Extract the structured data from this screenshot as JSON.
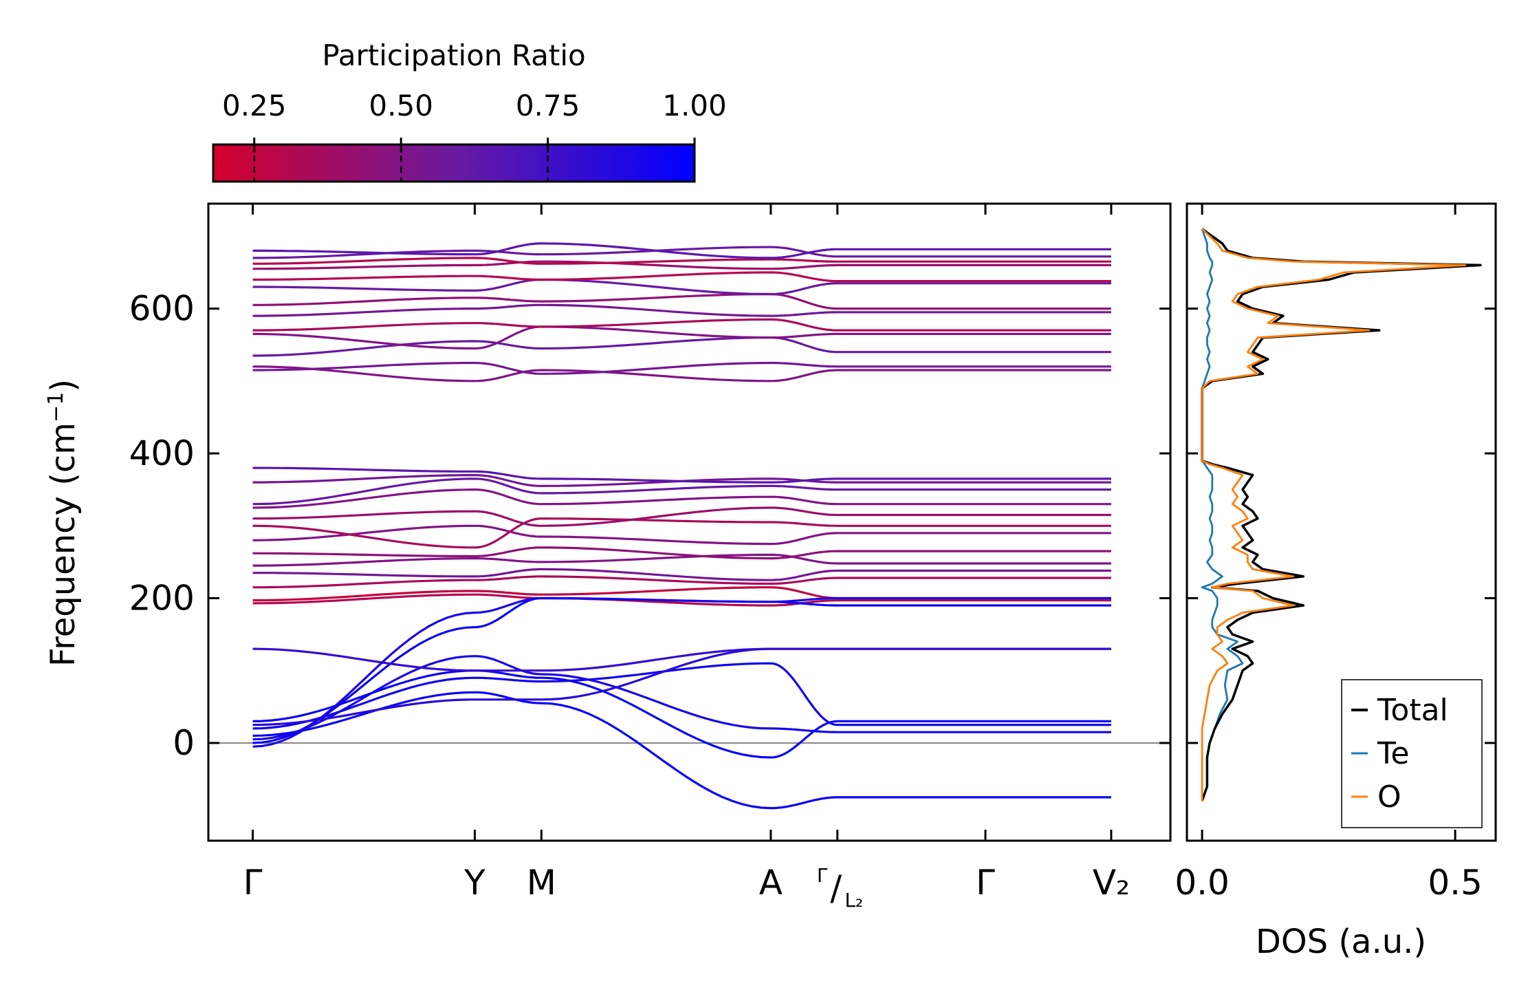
{
  "colorbar": {
    "title": "Participation Ratio",
    "ticks": [
      0.25,
      0.5,
      0.75,
      1.0
    ],
    "tick_labels": [
      "0.25",
      "0.50",
      "0.75",
      "1.00"
    ],
    "range": [
      0.18,
      1.0
    ],
    "color_low": "#d4002a",
    "color_mid": "#6a1aa0",
    "color_high": "#0000ff"
  },
  "chart_data": [
    {
      "type": "line",
      "name": "phonon-band-structure",
      "ylabel": "Frequency (cm",
      "ylabel_sup": "−1",
      "ylabel_close": ")",
      "ylim": [
        -135,
        745
      ],
      "yticks": [
        0,
        200,
        400,
        600
      ],
      "ytick_labels": [
        "0",
        "200",
        "400",
        "600"
      ],
      "xlim": [
        -0.3,
        6.2
      ],
      "path_labels": [
        {
          "x": 0,
          "label": "Γ"
        },
        {
          "x": 1.5,
          "label": "Y"
        },
        {
          "x": 1.95,
          "label": "M"
        },
        {
          "x": 3.5,
          "label": "A"
        },
        {
          "x": 3.95,
          "label_top": "Γ",
          "label_slash": "/",
          "label_bottom": "L₂"
        },
        {
          "x": 4.95,
          "label": "Γ"
        },
        {
          "x": 5.8,
          "label": "V₂"
        }
      ],
      "zero_line": 0,
      "segments": [
        [
          0,
          3.5
        ],
        [
          3.5,
          3.95
        ],
        [
          3.95,
          4.95
        ],
        [
          4.95,
          5.8
        ]
      ],
      "bands_optical_high": [
        {
          "f": [
            520,
            500,
            515,
            500,
            515
          ],
          "pr": 0.5
        },
        {
          "f": [
            515,
            525,
            510,
            525,
            520
          ],
          "pr": 0.55
        },
        {
          "f": [
            535,
            555,
            545,
            560,
            540
          ],
          "pr": 0.6
        },
        {
          "f": [
            565,
            545,
            575,
            560,
            565
          ],
          "pr": 0.5
        },
        {
          "f": [
            570,
            580,
            575,
            585,
            570
          ],
          "pr": 0.35
        },
        {
          "f": [
            590,
            600,
            605,
            590,
            595
          ],
          "pr": 0.55
        },
        {
          "f": [
            605,
            615,
            610,
            620,
            600
          ],
          "pr": 0.45
        },
        {
          "f": [
            630,
            625,
            640,
            620,
            635
          ],
          "pr": 0.6
        },
        {
          "f": [
            640,
            645,
            640,
            650,
            638
          ],
          "pr": 0.3
        },
        {
          "f": [
            655,
            660,
            665,
            655,
            660
          ],
          "pr": 0.4
        },
        {
          "f": [
            662,
            670,
            662,
            668,
            665
          ],
          "pr": 0.3
        },
        {
          "f": [
            670,
            680,
            675,
            685,
            672
          ],
          "pr": 0.6
        },
        {
          "f": [
            680,
            675,
            690,
            670,
            682
          ],
          "pr": 0.65
        }
      ],
      "bands_optical_mid": [
        {
          "f": [
            193,
            205,
            200,
            190,
            197
          ],
          "pr": 0.3
        },
        {
          "f": [
            197,
            210,
            205,
            215,
            200
          ],
          "pr": 0.25
        },
        {
          "f": [
            215,
            225,
            230,
            220,
            228
          ],
          "pr": 0.35
        },
        {
          "f": [
            235,
            230,
            240,
            225,
            238
          ],
          "pr": 0.55
        },
        {
          "f": [
            245,
            255,
            250,
            260,
            248
          ],
          "pr": 0.5
        },
        {
          "f": [
            262,
            258,
            270,
            255,
            265
          ],
          "pr": 0.45
        },
        {
          "f": [
            280,
            300,
            285,
            275,
            290
          ],
          "pr": 0.5
        },
        {
          "f": [
            300,
            270,
            310,
            305,
            300
          ],
          "pr": 0.35
        },
        {
          "f": [
            310,
            320,
            300,
            325,
            315
          ],
          "pr": 0.4
        },
        {
          "f": [
            325,
            350,
            330,
            340,
            330
          ],
          "pr": 0.5
        },
        {
          "f": [
            330,
            365,
            345,
            355,
            350
          ],
          "pr": 0.6
        },
        {
          "f": [
            360,
            370,
            355,
            365,
            360
          ],
          "pr": 0.55
        },
        {
          "f": [
            380,
            375,
            365,
            360,
            365
          ],
          "pr": 0.65
        }
      ],
      "bands_acoustic": [
        {
          "f": [
            0,
            160,
            200,
            195,
            190
          ],
          "pr": 0.95
        },
        {
          "f": [
            5,
            120,
            95,
            20,
            15
          ],
          "pr": 0.9
        },
        {
          "f": [
            10,
            70,
            55,
            -90,
            -75
          ],
          "pr": 0.95
        },
        {
          "f": [
            20,
            90,
            85,
            110,
            25
          ],
          "pr": 0.92
        },
        {
          "f": [
            25,
            60,
            60,
            130,
            130
          ],
          "pr": 0.85
        },
        {
          "f": [
            30,
            100,
            90,
            -20,
            30
          ],
          "pr": 0.95
        },
        {
          "f": [
            130,
            100,
            100,
            130,
            130
          ],
          "pr": 0.8
        },
        {
          "f": [
            -5,
            180,
            200,
            195,
            200
          ],
          "pr": 0.9
        }
      ]
    },
    {
      "type": "line",
      "name": "density-of-states",
      "xlabel": "DOS (a.u.)",
      "xlim": [
        -0.03,
        0.58
      ],
      "xticks": [
        0.0,
        0.5
      ],
      "xtick_labels": [
        "0.0",
        "0.5"
      ],
      "ylim": [
        -135,
        745
      ],
      "legend_position": "bottom-right",
      "series": [
        {
          "name": "Total",
          "color": "#000000",
          "freq": [
            -80,
            -60,
            -40,
            -20,
            0,
            20,
            40,
            60,
            80,
            100,
            110,
            120,
            130,
            140,
            150,
            160,
            170,
            180,
            190,
            200,
            210,
            215,
            220,
            230,
            240,
            250,
            260,
            270,
            280,
            290,
            300,
            310,
            320,
            330,
            340,
            350,
            360,
            370,
            380,
            385,
            390,
            400,
            480,
            490,
            500,
            510,
            520,
            530,
            540,
            550,
            560,
            570,
            580,
            590,
            600,
            610,
            620,
            630,
            640,
            650,
            660,
            665,
            670,
            680,
            690,
            700,
            710
          ],
          "dos": [
            0.0,
            0.01,
            0.01,
            0.01,
            0.015,
            0.025,
            0.04,
            0.06,
            0.07,
            0.08,
            0.1,
            0.09,
            0.06,
            0.1,
            0.06,
            0.05,
            0.07,
            0.1,
            0.2,
            0.14,
            0.11,
            0.02,
            0.07,
            0.2,
            0.12,
            0.1,
            0.11,
            0.08,
            0.1,
            0.09,
            0.08,
            0.11,
            0.1,
            0.08,
            0.09,
            0.08,
            0.09,
            0.1,
            0.05,
            0.02,
            0.0,
            0.0,
            0.0,
            0.0,
            0.02,
            0.12,
            0.1,
            0.13,
            0.1,
            0.11,
            0.12,
            0.35,
            0.14,
            0.16,
            0.1,
            0.07,
            0.08,
            0.12,
            0.25,
            0.3,
            0.55,
            0.2,
            0.1,
            0.05,
            0.04,
            0.02,
            0.0
          ]
        },
        {
          "name": "Te",
          "color": "#1f77b4",
          "freq": [
            -80,
            -60,
            -40,
            -20,
            0,
            20,
            40,
            60,
            80,
            100,
            110,
            120,
            130,
            140,
            150,
            160,
            170,
            180,
            190,
            200,
            210,
            215,
            220,
            230,
            240,
            250,
            260,
            270,
            280,
            290,
            300,
            310,
            320,
            330,
            340,
            350,
            360,
            370,
            380,
            385,
            390,
            400,
            480,
            490,
            500,
            510,
            520,
            530,
            540,
            550,
            560,
            570,
            580,
            590,
            600,
            610,
            620,
            630,
            640,
            650,
            660,
            665,
            670,
            680,
            690,
            700,
            710
          ],
          "dos": [
            0.0,
            0.01,
            0.01,
            0.01,
            0.015,
            0.025,
            0.035,
            0.05,
            0.045,
            0.05,
            0.08,
            0.07,
            0.05,
            0.07,
            0.03,
            0.02,
            0.02,
            0.025,
            0.03,
            0.03,
            0.02,
            0.0,
            0.02,
            0.04,
            0.02,
            0.01,
            0.02,
            0.02,
            0.015,
            0.02,
            0.02,
            0.015,
            0.02,
            0.02,
            0.015,
            0.02,
            0.02,
            0.02,
            0.01,
            0.005,
            0.0,
            0.0,
            0.0,
            0.0,
            0.005,
            0.01,
            0.015,
            0.01,
            0.015,
            0.01,
            0.01,
            0.015,
            0.01,
            0.015,
            0.01,
            0.015,
            0.01,
            0.015,
            0.02,
            0.015,
            0.02,
            0.02,
            0.015,
            0.01,
            0.01,
            0.005,
            0.0
          ]
        },
        {
          "name": "O",
          "color": "#ff7f0e",
          "freq": [
            -80,
            -60,
            -40,
            -20,
            0,
            20,
            40,
            60,
            80,
            100,
            110,
            120,
            130,
            140,
            150,
            160,
            170,
            180,
            190,
            200,
            210,
            215,
            220,
            230,
            240,
            250,
            260,
            270,
            280,
            290,
            300,
            310,
            320,
            330,
            340,
            350,
            360,
            370,
            380,
            385,
            390,
            400,
            480,
            490,
            500,
            510,
            520,
            530,
            540,
            550,
            560,
            570,
            580,
            590,
            600,
            610,
            620,
            630,
            640,
            650,
            660,
            665,
            670,
            680,
            690,
            700,
            710
          ],
          "dos": [
            0.0,
            0.0,
            0.0,
            0.0,
            0.0,
            0.0,
            0.005,
            0.01,
            0.015,
            0.03,
            0.05,
            0.04,
            0.02,
            0.04,
            0.03,
            0.03,
            0.05,
            0.08,
            0.18,
            0.12,
            0.1,
            0.02,
            0.05,
            0.18,
            0.1,
            0.09,
            0.09,
            0.06,
            0.08,
            0.07,
            0.06,
            0.09,
            0.08,
            0.06,
            0.07,
            0.06,
            0.07,
            0.08,
            0.04,
            0.015,
            0.0,
            0.0,
            0.0,
            0.0,
            0.015,
            0.11,
            0.09,
            0.12,
            0.09,
            0.1,
            0.11,
            0.33,
            0.13,
            0.15,
            0.09,
            0.06,
            0.07,
            0.11,
            0.23,
            0.28,
            0.52,
            0.18,
            0.09,
            0.04,
            0.03,
            0.015,
            0.0
          ]
        }
      ]
    }
  ]
}
